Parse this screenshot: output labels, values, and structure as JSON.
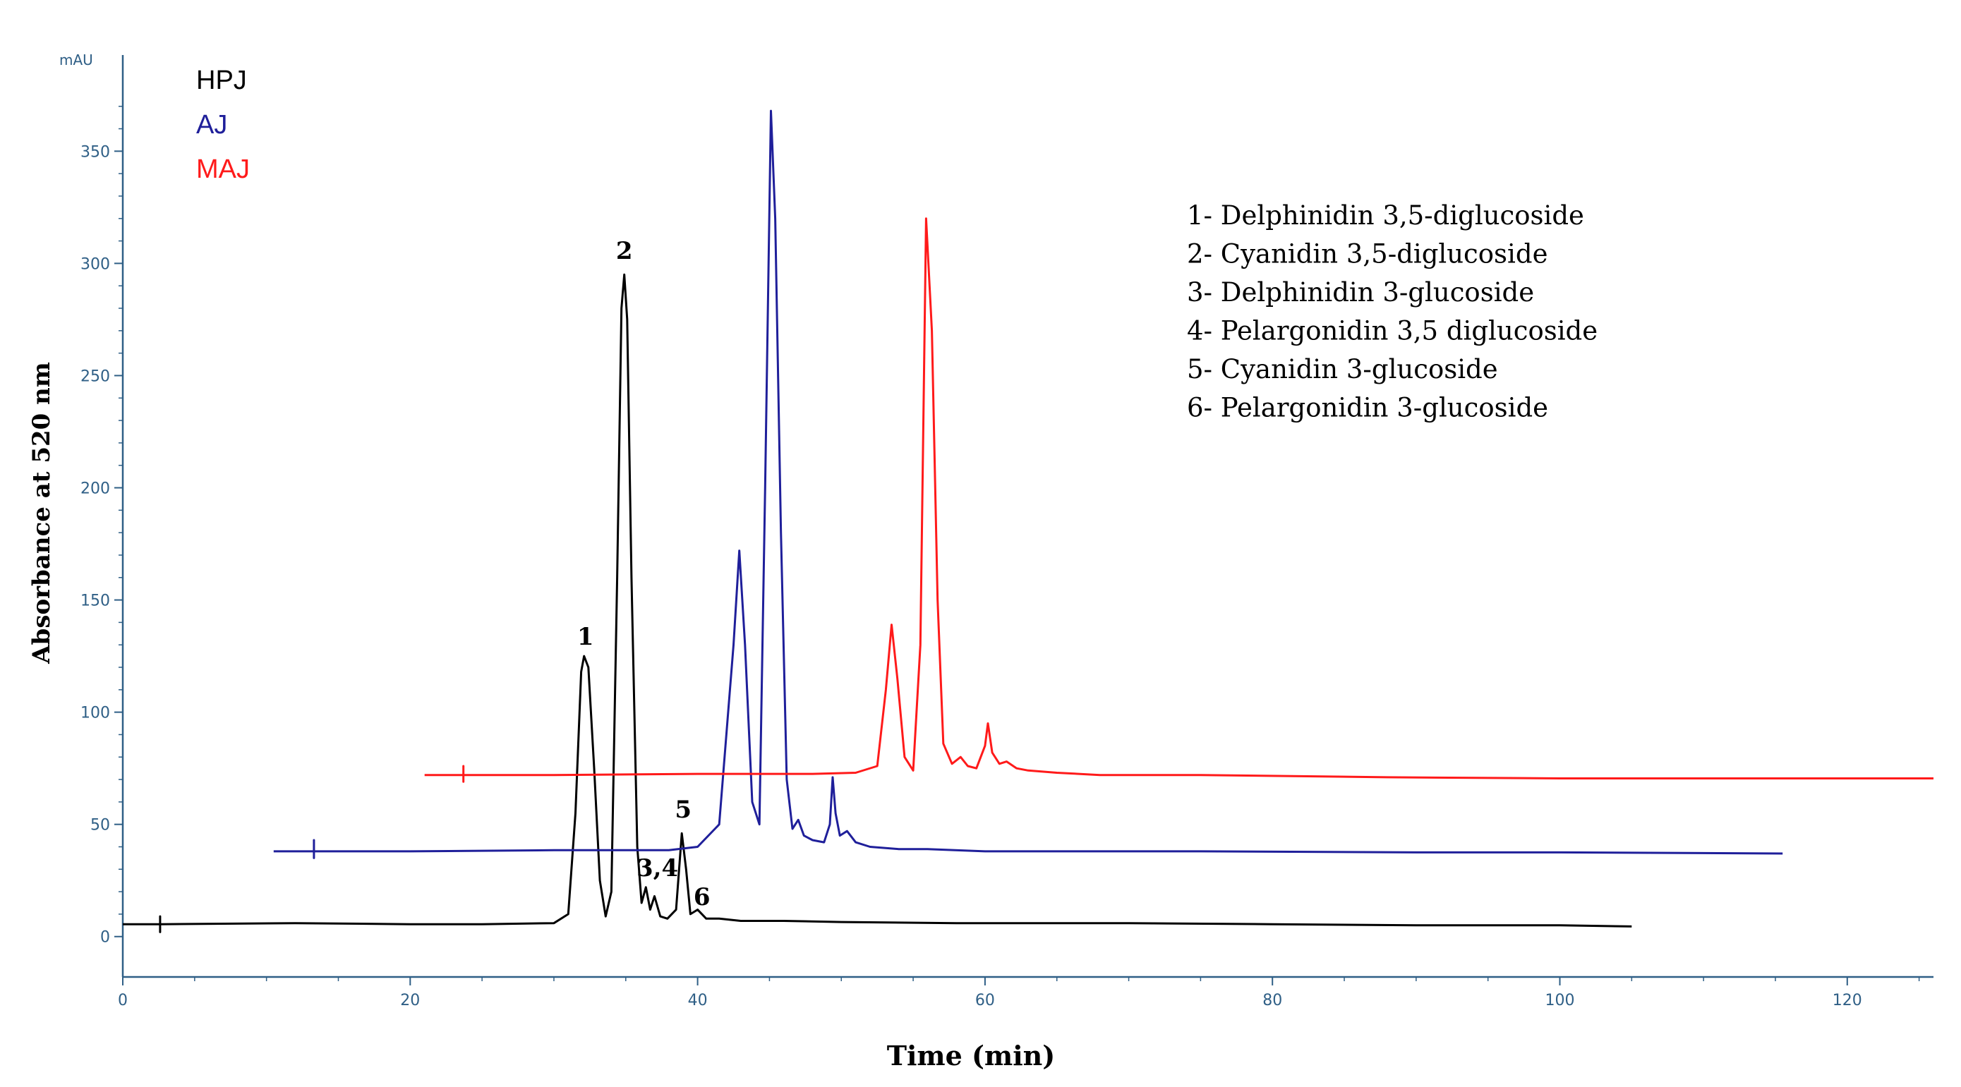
{
  "chart_data": {
    "type": "line",
    "xlabel": "Time (min)",
    "ylabel": "Absorbance at 520 nm",
    "y_unit": "mAU",
    "xlim": [
      0,
      126
    ],
    "ylim": [
      -18,
      385
    ],
    "x_ticks": [
      0,
      20,
      40,
      60,
      80,
      100,
      120
    ],
    "y_ticks": [
      0,
      50,
      100,
      150,
      200,
      250,
      300,
      350
    ],
    "grid": false,
    "legend_position": "top-left",
    "series": [
      {
        "name": "HPJ",
        "color": "#000000",
        "points": [
          [
            0,
            5.5
          ],
          [
            2.6,
            5.5
          ],
          [
            2.6,
            2
          ],
          [
            2.6,
            9
          ],
          [
            2.6,
            5.5
          ],
          [
            12,
            6
          ],
          [
            20,
            5.5
          ],
          [
            25,
            5.5
          ],
          [
            30,
            6
          ],
          [
            31,
            10
          ],
          [
            31.5,
            55
          ],
          [
            31.9,
            118
          ],
          [
            32.1,
            125
          ],
          [
            32.4,
            120
          ],
          [
            32.8,
            75
          ],
          [
            33.2,
            25
          ],
          [
            33.6,
            9
          ],
          [
            34,
            20
          ],
          [
            34.4,
            160
          ],
          [
            34.7,
            280
          ],
          [
            34.9,
            295
          ],
          [
            35.1,
            275
          ],
          [
            35.4,
            160
          ],
          [
            35.8,
            40
          ],
          [
            36.1,
            15
          ],
          [
            36.4,
            22
          ],
          [
            36.7,
            12
          ],
          [
            37,
            18
          ],
          [
            37.4,
            9
          ],
          [
            37.9,
            8
          ],
          [
            38.5,
            12
          ],
          [
            38.9,
            46
          ],
          [
            39.2,
            30
          ],
          [
            39.5,
            10
          ],
          [
            40,
            12
          ],
          [
            40.6,
            8
          ],
          [
            41.5,
            8
          ],
          [
            43,
            7
          ],
          [
            46,
            7
          ],
          [
            50,
            6.5
          ],
          [
            58,
            6
          ],
          [
            70,
            6
          ],
          [
            80,
            5.5
          ],
          [
            90,
            5
          ],
          [
            100,
            5
          ],
          [
            105,
            4.5
          ]
        ]
      },
      {
        "name": "AJ",
        "color": "#1f1f9a",
        "points": [
          [
            10.5,
            38
          ],
          [
            13.3,
            38
          ],
          [
            13.3,
            35
          ],
          [
            13.3,
            43
          ],
          [
            13.3,
            38
          ],
          [
            20,
            38
          ],
          [
            30,
            38.5
          ],
          [
            38,
            38.5
          ],
          [
            40,
            40
          ],
          [
            41.5,
            50
          ],
          [
            42.5,
            130
          ],
          [
            42.9,
            172
          ],
          [
            43.3,
            130
          ],
          [
            43.8,
            60
          ],
          [
            44.3,
            50
          ],
          [
            44.7,
            200
          ],
          [
            45.1,
            368
          ],
          [
            45.4,
            320
          ],
          [
            45.8,
            180
          ],
          [
            46.2,
            70
          ],
          [
            46.6,
            48
          ],
          [
            47,
            52
          ],
          [
            47.4,
            45
          ],
          [
            48,
            43
          ],
          [
            48.8,
            42
          ],
          [
            49.2,
            50
          ],
          [
            49.4,
            71
          ],
          [
            49.6,
            55
          ],
          [
            49.9,
            45
          ],
          [
            50.4,
            47
          ],
          [
            51,
            42
          ],
          [
            52,
            40
          ],
          [
            54,
            39
          ],
          [
            56,
            39
          ],
          [
            60,
            38
          ],
          [
            75,
            38
          ],
          [
            90,
            37.5
          ],
          [
            100,
            37.5
          ],
          [
            115.5,
            37
          ]
        ]
      },
      {
        "name": "MAJ",
        "color": "#ff1a1a",
        "points": [
          [
            21,
            72
          ],
          [
            23.7,
            72
          ],
          [
            23.7,
            69
          ],
          [
            23.7,
            76
          ],
          [
            23.7,
            72
          ],
          [
            30,
            72
          ],
          [
            40,
            72.5
          ],
          [
            48,
            72.5
          ],
          [
            51,
            73
          ],
          [
            52.5,
            76
          ],
          [
            53.1,
            110
          ],
          [
            53.5,
            139
          ],
          [
            53.9,
            115
          ],
          [
            54.4,
            80
          ],
          [
            55,
            74
          ],
          [
            55.5,
            130
          ],
          [
            55.9,
            320
          ],
          [
            56.3,
            270
          ],
          [
            56.7,
            150
          ],
          [
            57.1,
            86
          ],
          [
            57.7,
            77
          ],
          [
            58.3,
            80
          ],
          [
            58.8,
            76
          ],
          [
            59.4,
            75
          ],
          [
            60,
            85
          ],
          [
            60.2,
            95
          ],
          [
            60.5,
            82
          ],
          [
            61,
            77
          ],
          [
            61.5,
            78
          ],
          [
            62.2,
            75
          ],
          [
            63,
            74
          ],
          [
            65,
            73
          ],
          [
            68,
            72
          ],
          [
            75,
            72
          ],
          [
            88,
            71
          ],
          [
            100,
            70.5
          ],
          [
            110,
            70.5
          ],
          [
            126,
            70.5
          ]
        ]
      }
    ],
    "peak_labels": [
      {
        "text": "1",
        "x": 32.2,
        "y": 130
      },
      {
        "text": "2",
        "x": 34.9,
        "y": 302
      },
      {
        "text": "3,4",
        "x": 37.2,
        "y": 27
      },
      {
        "text": "5",
        "x": 39.0,
        "y": 53
      },
      {
        "text": "6",
        "x": 40.3,
        "y": 14
      }
    ],
    "annotations": [
      "1- Delphinidin 3,5-diglucoside",
      "2- Cyanidin 3,5-diglucoside",
      "3- Delphinidin 3-glucoside",
      "4- Pelargonidin 3,5 diglucoside",
      "5- Cyanidin 3-glucoside",
      "6- Pelargonidin 3-glucoside"
    ]
  }
}
